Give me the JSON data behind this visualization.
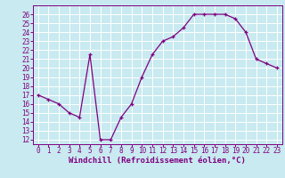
{
  "x": [
    0,
    1,
    2,
    3,
    4,
    5,
    6,
    7,
    8,
    9,
    10,
    11,
    12,
    13,
    14,
    15,
    16,
    17,
    18,
    19,
    20,
    21,
    22,
    23
  ],
  "y": [
    17.0,
    16.5,
    16.0,
    15.0,
    14.5,
    21.5,
    12.0,
    12.0,
    14.5,
    16.0,
    19.0,
    21.5,
    23.0,
    23.5,
    24.5,
    26.0,
    26.0,
    26.0,
    26.0,
    25.5,
    24.0,
    21.0,
    20.5,
    20.0
  ],
  "line_color": "#800080",
  "marker": "+",
  "marker_color": "#800080",
  "xlabel": "Windchill (Refroidissement éolien,°C)",
  "xlabel_fontsize": 6.5,
  "background_color": "#c8eaf0",
  "grid_color": "#ffffff",
  "tick_color": "#800080",
  "label_color": "#800080",
  "xlim": [
    -0.5,
    23.5
  ],
  "ylim": [
    11.5,
    27.0
  ],
  "yticks": [
    12,
    13,
    14,
    15,
    16,
    17,
    18,
    19,
    20,
    21,
    22,
    23,
    24,
    25,
    26
  ],
  "xticks": [
    0,
    1,
    2,
    3,
    4,
    5,
    6,
    7,
    8,
    9,
    10,
    11,
    12,
    13,
    14,
    15,
    16,
    17,
    18,
    19,
    20,
    21,
    22,
    23
  ],
  "tick_fontsize": 5.5,
  "linewidth": 0.9,
  "markersize": 3.5
}
